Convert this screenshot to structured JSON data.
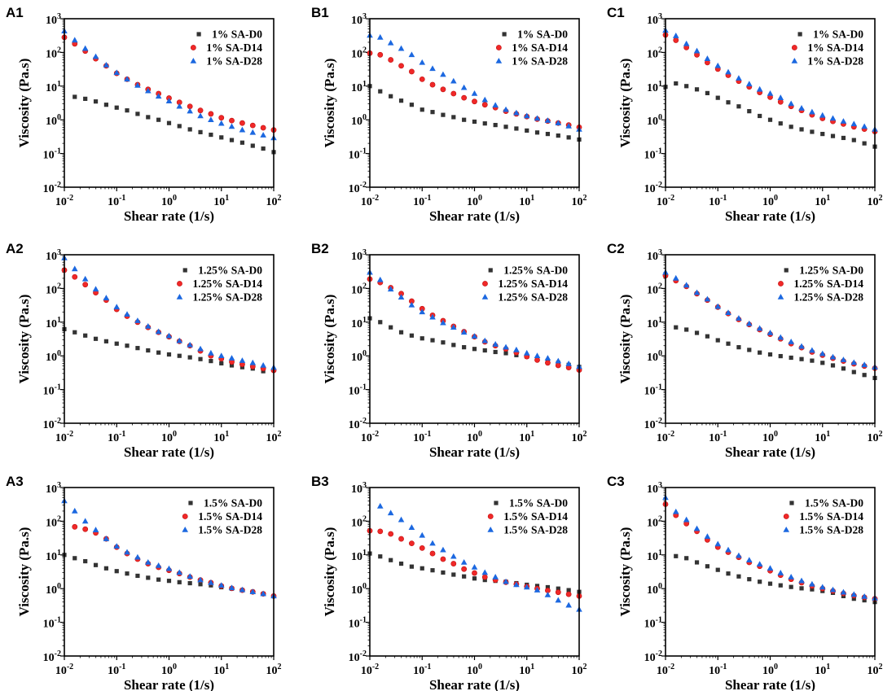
{
  "chart_data": [
    {
      "panel": "A1",
      "type": "scatter",
      "xlabel": "Shear rate (1/s)",
      "ylabel": "Viscosity (Pa.s)",
      "xscale": "log",
      "yscale": "log",
      "xlim": [
        0.01,
        100
      ],
      "ylim": [
        0.01,
        1000
      ],
      "xticks": [
        "10^-2",
        "10^-1",
        "10^0",
        "10^1",
        "10^2"
      ],
      "yticks": [
        "10^-2",
        "10^-1",
        "10^0",
        "10^1",
        "10^2",
        "10^3"
      ],
      "legend_position": "top-right",
      "series": [
        {
          "name": "1% SA-D0",
          "values": [
            null,
            4.8,
            4.2,
            3.5,
            2.8,
            2.3,
            1.9,
            1.5,
            1.2,
            1.0,
            0.8,
            0.65,
            0.52,
            0.43,
            0.36,
            0.3,
            0.25,
            0.21,
            0.17,
            0.14,
            0.11
          ]
        },
        {
          "name": "1% SA-D14",
          "values": [
            280,
            180,
            110,
            65,
            40,
            24,
            16,
            11,
            8,
            6,
            4.4,
            3.3,
            2.5,
            1.9,
            1.5,
            1.15,
            0.95,
            0.8,
            0.68,
            0.58,
            0.5
          ]
        },
        {
          "name": "1% SA-D28",
          "values": [
            430,
            230,
            130,
            75,
            42,
            25,
            16,
            10.5,
            7.2,
            5.0,
            3.6,
            2.5,
            1.8,
            1.3,
            1.0,
            0.78,
            0.63,
            0.5,
            0.42,
            0.35,
            0.29
          ]
        }
      ]
    },
    {
      "panel": "B1",
      "type": "scatter",
      "xlabel": "Shear rate (1/s)",
      "ylabel": "Viscosity (Pa.s)",
      "xscale": "log",
      "yscale": "log",
      "xlim": [
        0.01,
        100
      ],
      "ylim": [
        0.01,
        1000
      ],
      "xticks": [
        "10^-2",
        "10^-1",
        "10^0",
        "10^1",
        "10^2"
      ],
      "yticks": [
        "10^-2",
        "10^-1",
        "10^0",
        "10^1",
        "10^2",
        "10^3"
      ],
      "legend_position": "top-right",
      "series": [
        {
          "name": "1% SA-D0",
          "values": [
            10,
            7,
            5,
            3.7,
            2.8,
            2.0,
            1.7,
            1.4,
            1.2,
            1.0,
            0.88,
            0.78,
            0.7,
            0.62,
            0.55,
            0.48,
            0.42,
            0.38,
            0.34,
            0.3,
            0.26
          ]
        },
        {
          "name": "1% SA-D14",
          "values": [
            95,
            85,
            60,
            40,
            27,
            16,
            11,
            8,
            6,
            4.5,
            3.5,
            2.8,
            2.3,
            1.8,
            1.5,
            1.25,
            1.05,
            0.92,
            0.8,
            0.7,
            0.6
          ]
        },
        {
          "name": "1% SA-D28",
          "values": [
            320,
            280,
            190,
            130,
            85,
            50,
            33,
            22,
            14,
            9,
            6,
            3.9,
            2.7,
            2.0,
            1.6,
            1.3,
            1.1,
            0.95,
            0.8,
            0.65,
            0.52
          ]
        }
      ]
    },
    {
      "panel": "C1",
      "type": "scatter",
      "xlabel": "Shear rate (1/s)",
      "ylabel": "Viscosity (Pa.s)",
      "xscale": "log",
      "yscale": "log",
      "xlim": [
        0.01,
        100
      ],
      "ylim": [
        0.01,
        1000
      ],
      "xticks": [
        "10^-2",
        "10^-1",
        "10^0",
        "10^1",
        "10^2"
      ],
      "yticks": [
        "10^-2",
        "10^-1",
        "10^0",
        "10^1",
        "10^2",
        "10^3"
      ],
      "legend_position": "top-right",
      "series": [
        {
          "name": "1% SA-D0",
          "values": [
            9.5,
            12,
            10,
            8,
            6.2,
            4.5,
            3.3,
            2.5,
            1.8,
            1.3,
            1.0,
            0.78,
            0.62,
            0.52,
            0.44,
            0.38,
            0.33,
            0.29,
            0.25,
            0.2,
            0.16
          ]
        },
        {
          "name": "1% SA-D14",
          "values": [
            330,
            230,
            140,
            85,
            50,
            32,
            21,
            14,
            9.5,
            6.5,
            4.7,
            3.4,
            2.5,
            1.9,
            1.4,
            1.1,
            0.9,
            0.75,
            0.62,
            0.53,
            0.45
          ]
        },
        {
          "name": "1% SA-D28",
          "values": [
            450,
            310,
            180,
            110,
            65,
            40,
            26,
            17,
            11.5,
            8,
            6,
            4.5,
            3.0,
            2.2,
            1.7,
            1.35,
            1.1,
            0.9,
            0.75,
            0.63,
            0.52
          ]
        }
      ]
    },
    {
      "panel": "A2",
      "type": "scatter",
      "xlabel": "Shear rate (1/s)",
      "ylabel": "Viscosity (Pa.s)",
      "xscale": "log",
      "yscale": "log",
      "xlim": [
        0.01,
        100
      ],
      "ylim": [
        0.01,
        1000
      ],
      "xticks": [
        "10^-2",
        "10^-1",
        "10^0",
        "10^1",
        "10^2"
      ],
      "yticks": [
        "10^-2",
        "10^-1",
        "10^0",
        "10^1",
        "10^2",
        "10^3"
      ],
      "legend_position": "top-right",
      "series": [
        {
          "name": "1.25% SA-D0",
          "values": [
            6.2,
            5,
            4,
            3.2,
            2.7,
            2.3,
            2.0,
            1.7,
            1.45,
            1.25,
            1.1,
            1.0,
            0.9,
            0.8,
            0.7,
            0.6,
            0.52,
            0.46,
            0.42,
            0.35,
            null
          ]
        },
        {
          "name": "1.25% SA-D14",
          "values": [
            350,
            220,
            130,
            75,
            45,
            24,
            15,
            10,
            7,
            5,
            3.7,
            2.7,
            2.0,
            1.4,
            1.0,
            0.82,
            0.66,
            0.56,
            0.48,
            0.42,
            0.37
          ]
        },
        {
          "name": "1.25% SA-D28",
          "values": [
            800,
            380,
            190,
            95,
            52,
            28,
            17,
            11,
            7.5,
            5.2,
            3.9,
            2.8,
            2.1,
            1.6,
            1.2,
            1.0,
            0.85,
            0.72,
            0.62,
            0.52,
            0.45
          ]
        }
      ]
    },
    {
      "panel": "B2",
      "type": "scatter",
      "xlabel": "Shear rate (1/s)",
      "ylabel": "Viscosity (Pa.s)",
      "xscale": "log",
      "yscale": "log",
      "xlim": [
        0.01,
        100
      ],
      "ylim": [
        0.01,
        1000
      ],
      "xticks": [
        "10^-2",
        "10^-1",
        "10^0",
        "10^1",
        "10^2"
      ],
      "yticks": [
        "10^-2",
        "10^-1",
        "10^0",
        "10^1",
        "10^2",
        "10^3"
      ],
      "legend_position": "top-right",
      "series": [
        {
          "name": "1.25% SA-D0",
          "values": [
            13,
            10,
            7,
            5,
            4,
            3.3,
            2.9,
            2.5,
            2.1,
            1.8,
            1.6,
            1.45,
            1.3,
            1.2,
            1.05,
            0.95,
            0.82,
            0.72,
            0.62,
            0.54,
            0.47
          ]
        },
        {
          "name": "1.25% SA-D14",
          "values": [
            190,
            150,
            105,
            70,
            42,
            25,
            16,
            11,
            7.5,
            5.2,
            3.7,
            2.6,
            2.0,
            1.6,
            1.25,
            0.95,
            0.75,
            0.62,
            0.52,
            0.45,
            0.38
          ]
        },
        {
          "name": "1.25% SA-D28",
          "values": [
            300,
            180,
            95,
            55,
            32,
            20,
            14,
            9.5,
            7,
            5,
            3.8,
            2.8,
            2.2,
            1.8,
            1.5,
            1.2,
            1.0,
            0.85,
            0.7,
            0.58,
            0.48
          ]
        }
      ]
    },
    {
      "panel": "C2",
      "type": "scatter",
      "xlabel": "Shear rate (1/s)",
      "ylabel": "Viscosity (Pa.s)",
      "xscale": "log",
      "yscale": "log",
      "xlim": [
        0.01,
        100
      ],
      "ylim": [
        0.01,
        1000
      ],
      "xticks": [
        "10^-2",
        "10^-1",
        "10^0",
        "10^1",
        "10^2"
      ],
      "yticks": [
        "10^-2",
        "10^-1",
        "10^0",
        "10^1",
        "10^2",
        "10^3"
      ],
      "legend_position": "top-right",
      "series": [
        {
          "name": "1.25% SA-D0",
          "values": [
            null,
            7,
            6,
            4.8,
            3.8,
            2.9,
            2.3,
            1.8,
            1.5,
            1.25,
            1.1,
            0.98,
            0.88,
            0.8,
            0.72,
            0.62,
            0.52,
            0.42,
            0.33,
            0.27,
            0.22
          ]
        },
        {
          "name": "1.25% SA-D14",
          "values": [
            240,
            170,
            115,
            70,
            45,
            28,
            18,
            12,
            8.5,
            6,
            4.4,
            3.2,
            2.3,
            1.75,
            1.3,
            1.05,
            0.85,
            0.7,
            0.58,
            0.5,
            0.43
          ]
        },
        {
          "name": "1.25% SA-D28",
          "values": [
            300,
            200,
            125,
            75,
            48,
            29,
            19,
            13,
            9,
            6.5,
            4.8,
            3.5,
            2.6,
            1.9,
            1.45,
            1.15,
            0.92,
            0.76,
            0.63,
            0.54,
            0.46
          ]
        }
      ]
    },
    {
      "panel": "A3",
      "type": "scatter",
      "xlabel": "Shear rate (1/s)",
      "ylabel": "Viscosity (Pa.s)",
      "xscale": "log",
      "yscale": "log",
      "xlim": [
        0.01,
        100
      ],
      "ylim": [
        0.01,
        1000
      ],
      "xticks": [
        "10^-2",
        "10^-1",
        "10^0",
        "10^1",
        "10^2"
      ],
      "yticks": [
        "10^-2",
        "10^-1",
        "10^0",
        "10^1",
        "10^2",
        "10^3"
      ],
      "legend_position": "top-right",
      "series": [
        {
          "name": "1.5% SA-D0",
          "values": [
            10,
            8,
            6.5,
            5,
            4,
            3.3,
            2.8,
            2.4,
            2.1,
            1.85,
            1.7,
            1.55,
            1.45,
            1.35,
            1.25,
            1.1,
            1.0,
            0.9,
            0.8,
            0.7,
            0.6
          ]
        },
        {
          "name": "1.5% SA-D14",
          "values": [
            null,
            68,
            58,
            45,
            30,
            17,
            11,
            7.5,
            5.5,
            4.3,
            3.5,
            2.8,
            2.2,
            1.8,
            1.5,
            1.2,
            1.02,
            0.9,
            0.8,
            0.7,
            0.6
          ]
        },
        {
          "name": "1.5% SA-D28",
          "values": [
            400,
            200,
            100,
            55,
            30,
            18,
            12,
            8.5,
            6,
            4.8,
            3.9,
            3.0,
            2.3,
            1.8,
            1.5,
            1.25,
            1.05,
            0.92,
            0.8,
            0.7,
            0.6
          ]
        }
      ]
    },
    {
      "panel": "B3",
      "type": "scatter",
      "xlabel": "Shear rate (1/s)",
      "ylabel": "Viscosity (Pa.s)",
      "xscale": "log",
      "yscale": "log",
      "xlim": [
        0.01,
        100
      ],
      "ylim": [
        0.01,
        1000
      ],
      "xticks": [
        "10^-2",
        "10^-1",
        "10^0",
        "10^1",
        "10^2"
      ],
      "yticks": [
        "10^-2",
        "10^-1",
        "10^0",
        "10^1",
        "10^2",
        "10^3"
      ],
      "legend_position": "top-right",
      "series": [
        {
          "name": "1.5% SA-D0",
          "values": [
            11,
            9,
            7,
            5.5,
            4.5,
            4,
            3.5,
            3.0,
            2.6,
            2.3,
            2.0,
            1.8,
            1.7,
            1.6,
            1.45,
            1.3,
            1.2,
            1.1,
            1.0,
            0.9,
            0.8
          ]
        },
        {
          "name": "1.5% SA-D14",
          "values": [
            52,
            50,
            42,
            30,
            22,
            16,
            11,
            7.5,
            5.5,
            3.8,
            2.9,
            2.2,
            1.8,
            1.55,
            1.35,
            1.15,
            1.0,
            0.88,
            0.78,
            0.68,
            0.6
          ]
        },
        {
          "name": "1.5% SA-D28",
          "values": [
            null,
            280,
            175,
            110,
            65,
            38,
            22,
            14,
            9,
            6,
            4.3,
            3.0,
            2.2,
            1.6,
            1.3,
            1.1,
            0.9,
            0.65,
            0.45,
            0.32,
            0.24
          ]
        }
      ]
    },
    {
      "panel": "C3",
      "type": "scatter",
      "xlabel": "Shear rate (1/s)",
      "ylabel": "Viscosity (Pa.s)",
      "xscale": "log",
      "yscale": "log",
      "xlim": [
        0.01,
        100
      ],
      "ylim": [
        0.01,
        1000
      ],
      "xticks": [
        "10^-2",
        "10^-1",
        "10^0",
        "10^1",
        "10^2"
      ],
      "yticks": [
        "10^-2",
        "10^-1",
        "10^0",
        "10^1",
        "10^2",
        "10^3"
      ],
      "legend_position": "top-right",
      "series": [
        {
          "name": "1.5% SA-D0",
          "values": [
            null,
            9.2,
            8,
            6,
            4.6,
            3.6,
            2.8,
            2.3,
            1.9,
            1.6,
            1.4,
            1.25,
            1.12,
            1.02,
            0.95,
            0.85,
            0.75,
            0.6,
            0.5,
            0.45,
            0.4
          ]
        },
        {
          "name": "1.5% SA-D14",
          "values": [
            320,
            150,
            85,
            50,
            28,
            17,
            12,
            8.5,
            6,
            4.6,
            3.4,
            2.5,
            1.9,
            1.5,
            1.2,
            1.0,
            0.85,
            0.72,
            0.62,
            0.55,
            0.5
          ]
        },
        {
          "name": "1.5% SA-D28",
          "values": [
            500,
            190,
            110,
            60,
            35,
            21,
            14,
            9.5,
            7,
            5.3,
            4.0,
            2.9,
            2.2,
            1.7,
            1.35,
            1.1,
            0.92,
            0.78,
            0.67,
            0.58,
            0.52
          ]
        }
      ]
    }
  ],
  "x_values": [
    0.01,
    0.0158,
    0.0251,
    0.0398,
    0.0631,
    0.1,
    0.158,
    0.251,
    0.398,
    0.631,
    1,
    1.58,
    2.51,
    3.98,
    6.31,
    10,
    15.8,
    25.1,
    39.8,
    63.1,
    100
  ],
  "series_styles": [
    {
      "marker": "square",
      "color": "#333333"
    },
    {
      "marker": "circle",
      "color": "#f02828"
    },
    {
      "marker": "triangle",
      "color": "#1c68e0"
    }
  ]
}
